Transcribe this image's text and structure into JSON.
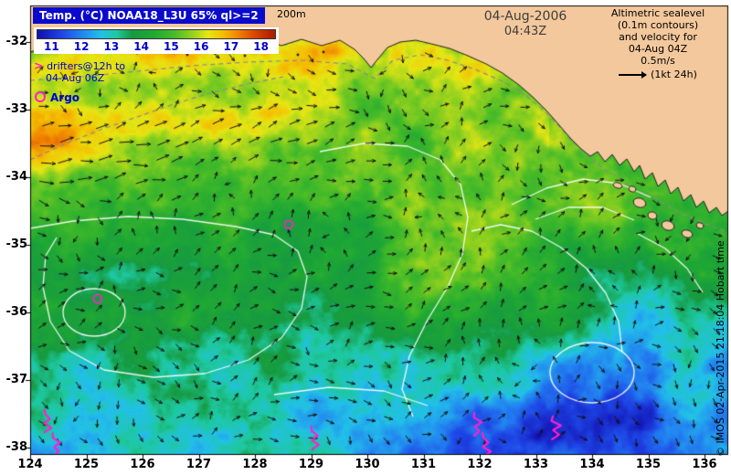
{
  "colors": {
    "land": "#f3c89c",
    "coastline": "#222222",
    "frame": "#000000",
    "title_bg": "#0a0acc",
    "title_fg": "#ffffff",
    "label_blue": "#0000cc",
    "magenta": "#ff1fd0",
    "contour_white": "#ffffff",
    "isobath_gray": "#8a8a8a",
    "arrow_black": "#111111",
    "date_gray": "#3d3d3d",
    "page_bg": "#ffffff"
  },
  "header": {
    "title": "Temp. (°C) NOAA18_L3U 65% ql>=2",
    "isobath_label": "200m",
    "date": "04-Aug-2006",
    "time": "04:43Z"
  },
  "legend": {
    "colorbar_ticks": [
      "11",
      "12",
      "13",
      "14",
      "15",
      "16",
      "17",
      "18"
    ],
    "drifters_symbol": ">",
    "drifters_line1": "drifters@12h to",
    "drifters_line2": "04-Aug 06Z",
    "argo_label": "Argo"
  },
  "altimetry_note": {
    "line1": "Altimetric sealevel",
    "line2": "(0.1m contours)",
    "line3": "and velocity for",
    "line4": "04-Aug 04Z",
    "speed": "0.5m/s",
    "scale_caption": "(1kt 24h)"
  },
  "copyright": "© IMOS 02-Apr-2015 21:18:04 Hobart time",
  "axes": {
    "x_ticks": [
      124,
      125,
      126,
      127,
      128,
      129,
      130,
      131,
      132,
      133,
      134,
      135,
      136
    ],
    "y_ticks": [
      -32,
      -33,
      -34,
      -35,
      -36,
      -37,
      -38
    ]
  },
  "chart_data": {
    "type": "heatmap",
    "title": "Temp. (°C) NOAA18_L3U 65% ql>=2",
    "x_axis": {
      "ticks": [
        124,
        125,
        126,
        127,
        128,
        129,
        130,
        131,
        132,
        133,
        134,
        135,
        136
      ],
      "range": [
        124,
        136.4
      ]
    },
    "y_axis": {
      "ticks": [
        -32,
        -33,
        -34,
        -35,
        -36,
        -37,
        -38
      ],
      "range": [
        -38.1,
        -31.5
      ]
    },
    "colorbar": {
      "units": "°C",
      "ticks": [
        11,
        12,
        13,
        14,
        15,
        16,
        17,
        18
      ],
      "range": [
        10.7,
        18.5
      ],
      "stops": [
        [
          10.8,
          "#1414b4"
        ],
        [
          11.5,
          "#1e46e6"
        ],
        [
          12.2,
          "#2288f0"
        ],
        [
          12.8,
          "#22c0e8"
        ],
        [
          13.3,
          "#1ec8a0"
        ],
        [
          13.8,
          "#169a40"
        ],
        [
          14.5,
          "#1fa834"
        ],
        [
          15.2,
          "#46bb28"
        ],
        [
          15.8,
          "#96d21e"
        ],
        [
          16.3,
          "#e6e614"
        ],
        [
          16.8,
          "#f5bc00"
        ],
        [
          17.3,
          "#f08200"
        ],
        [
          17.8,
          "#dc4800"
        ],
        [
          18.4,
          "#b41e00"
        ]
      ]
    },
    "overlays": [
      "altimetric sea level contours (0.1m, white)",
      "velocity arrows (black, 0.5m/s scale)",
      "200m isobath (gray dashed)",
      "drifter tracks at 12h (magenta)",
      "Argo float positions (magenta circles)"
    ],
    "argo_floats_lonlat": [
      [
        128.6,
        -34.7
      ],
      [
        125.2,
        -35.8
      ]
    ],
    "drifter_tracks_lonlat": [
      [
        124.3,
        -37.6
      ],
      [
        124.45,
        -37.95
      ],
      [
        129.05,
        -37.85
      ],
      [
        131.95,
        -37.65
      ],
      [
        132.1,
        -37.95
      ],
      [
        133.35,
        -37.7
      ]
    ],
    "field_summary": {
      "shelf_edge_band_c": 17.5,
      "interior_c": 14.5,
      "southern_c": 12.5
    }
  }
}
